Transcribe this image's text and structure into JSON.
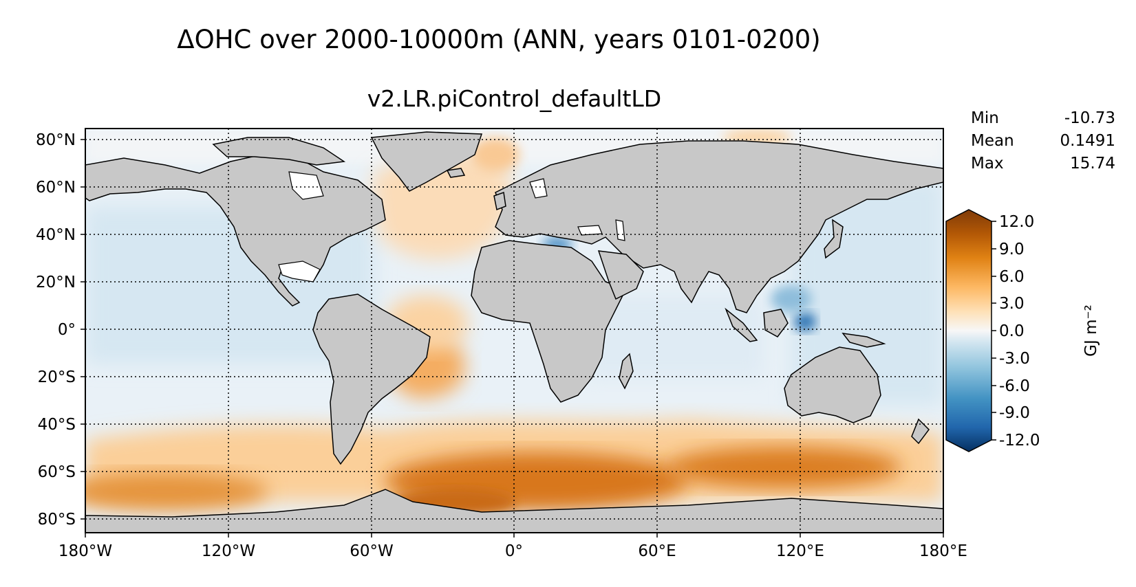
{
  "title": "ΔOHC over 2000-10000m (ANN, years 0101-0200)",
  "subtitle": "v2.LR.piControl_defaultLD",
  "stats": [
    {
      "label": "Min",
      "value": "-10.73"
    },
    {
      "label": "Mean",
      "value": "0.1491"
    },
    {
      "label": "Max",
      "value": "15.74"
    }
  ],
  "chart_data": {
    "type": "heatmap",
    "projection": "PlateCarree",
    "lon_range": [
      -180,
      180
    ],
    "lat_range": [
      -85,
      85
    ],
    "lon_ticks": [
      "180°W",
      "120°W",
      "60°W",
      "0°",
      "60°E",
      "120°E",
      "180°E"
    ],
    "lat_ticks": [
      "80°N",
      "60°N",
      "40°N",
      "20°N",
      "0°",
      "20°S",
      "40°S",
      "60°S",
      "80°S"
    ],
    "grid": true,
    "land_color": "#c8c8c8",
    "colorbar": {
      "label": "GJ m⁻²",
      "range": [
        -12,
        12
      ],
      "ticks": [
        "12.0",
        "9.0",
        "6.0",
        "3.0",
        "0.0",
        "-3.0",
        "-6.0",
        "-9.0",
        "-12.0"
      ],
      "colors": [
        "#053061",
        "#2166ac",
        "#4393c3",
        "#92c5de",
        "#d1e5f0",
        "#f7f7f7",
        "#fee0b6",
        "#fdb863",
        "#e08214",
        "#b35806",
        "#7f3b08"
      ]
    }
  }
}
